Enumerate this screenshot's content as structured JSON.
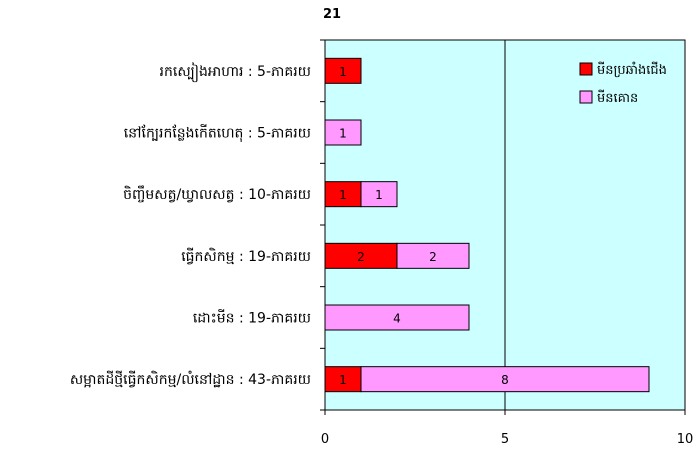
{
  "chart_data": {
    "type": "bar",
    "orientation": "horizontal",
    "stacked": true,
    "title": "21",
    "categories": [
      "រកស្បៀងអាហារ : 5-ភាគរយ",
      "នៅក្បែរកន្លែងកើតហេតុ : 5-ភាគរយ",
      "ចិញ្ចឹមសត្វ/ឃ្វាលសត្វ : 10-ភាគរយ",
      "ធ្វើកសិកម្ម : 19-ភាគរយ",
      "ដោះមីន : 19-ភាគរយ",
      "សម្អាតដីថ្មីធ្វើកសិកម្ម/លំនៅដ្ឋាន : 43-ភាគរយ"
    ],
    "series": [
      {
        "name": "មីនប្រឆាំងជើង",
        "color": "#ff0000",
        "values": [
          1,
          0,
          1,
          2,
          0,
          1
        ]
      },
      {
        "name": "មីនគោន",
        "color": "#ff99ff",
        "values": [
          0,
          1,
          1,
          2,
          4,
          8
        ]
      }
    ],
    "xlim": [
      0,
      10
    ],
    "xticks": [
      0,
      5,
      10
    ],
    "gridlines_x": [
      5
    ],
    "grid": true,
    "legend_position": "top-right",
    "plot_background": "#ccffff"
  }
}
